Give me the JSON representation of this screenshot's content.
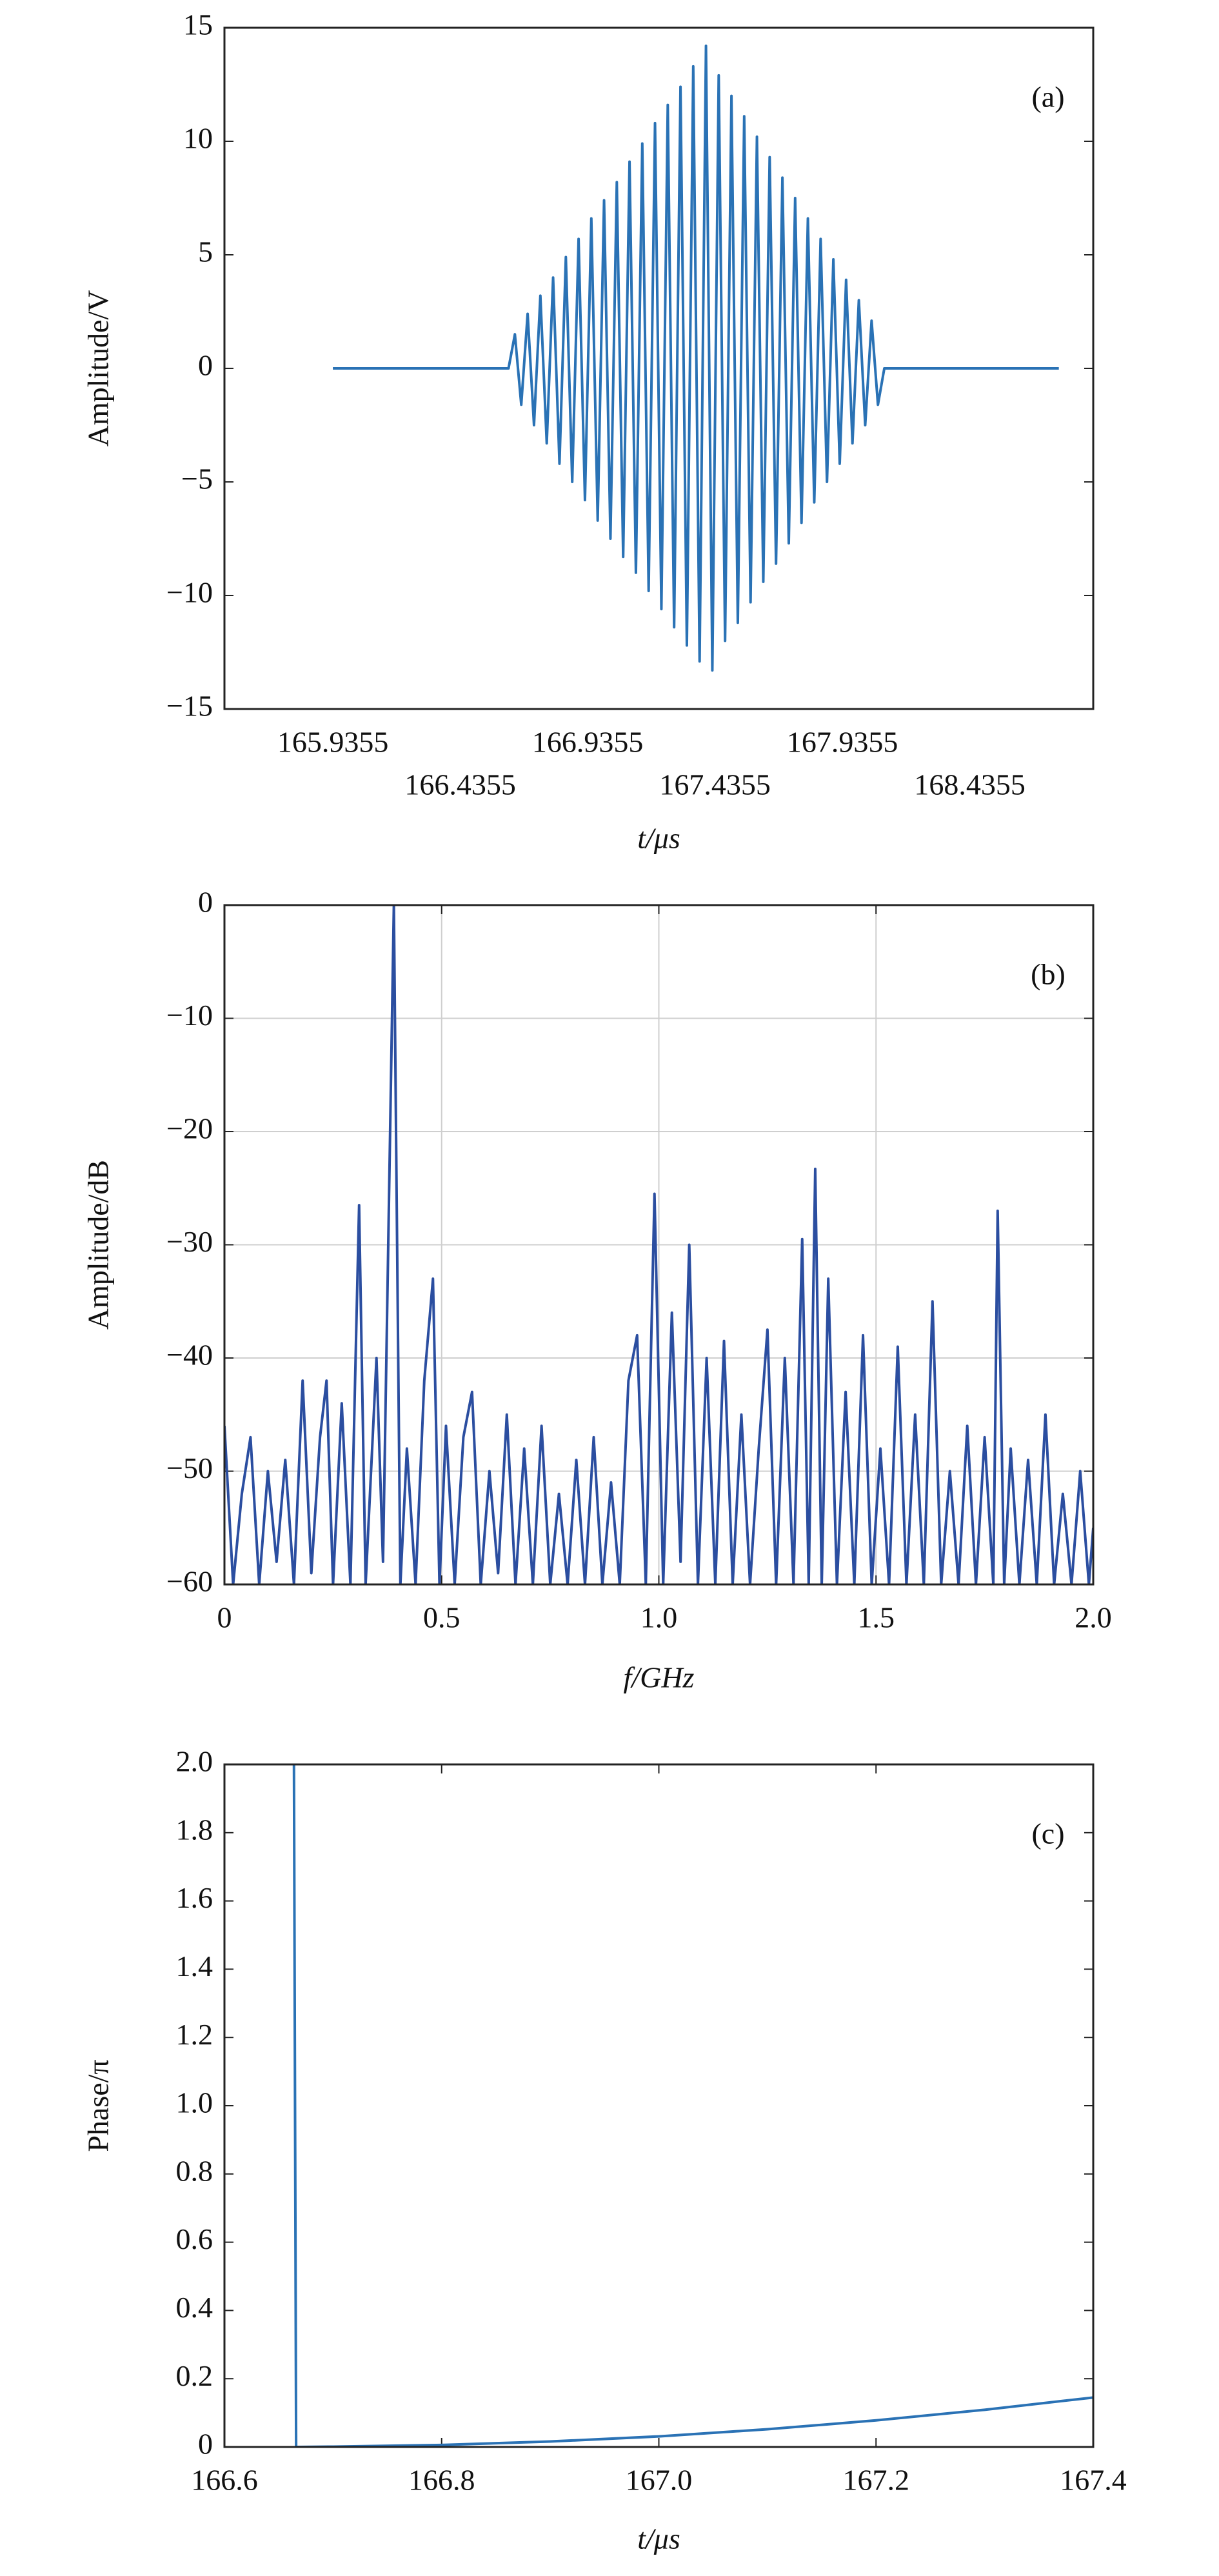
{
  "chart_data": [
    {
      "type": "line",
      "annotation": "(a)",
      "xlabel": "t/μs",
      "ylabel": "Amplitude/V",
      "color": "#2a72b5",
      "grid": false,
      "xlim": [
        165.51,
        168.92
      ],
      "xticks": [
        165.9355,
        166.4355,
        166.9355,
        167.4355,
        167.9355,
        168.4355
      ],
      "ylim": [
        -15,
        15
      ],
      "yticks": [
        {
          "value": -15,
          "label": "−15"
        },
        {
          "value": -10,
          "label": "−10"
        },
        {
          "value": -5,
          "label": "−5"
        },
        0,
        5,
        10,
        15
      ],
      "x": [
        165.9355,
        166.625,
        166.65,
        166.675,
        166.7,
        166.725,
        166.75,
        166.775,
        166.8,
        166.825,
        166.85,
        166.875,
        166.9,
        166.925,
        166.95,
        166.975,
        167.0,
        167.025,
        167.05,
        167.075,
        167.1,
        167.125,
        167.15,
        167.175,
        167.2,
        167.225,
        167.25,
        167.275,
        167.3,
        167.325,
        167.35,
        167.375,
        167.4,
        167.425,
        167.45,
        167.475,
        167.5,
        167.525,
        167.55,
        167.575,
        167.6,
        167.625,
        167.65,
        167.675,
        167.7,
        167.725,
        167.75,
        167.775,
        167.8,
        167.825,
        167.85,
        167.875,
        167.9,
        167.925,
        167.95,
        167.975,
        168.0,
        168.025,
        168.05,
        168.075,
        168.1,
        168.785
      ],
      "values": [
        0,
        0,
        1.5,
        -1.6,
        2.4,
        -2.5,
        3.2,
        -3.3,
        4.0,
        -4.2,
        4.9,
        -5.0,
        5.7,
        -5.8,
        6.6,
        -6.7,
        7.4,
        -7.5,
        8.2,
        -8.3,
        9.1,
        -9.0,
        9.9,
        -9.8,
        10.8,
        -10.6,
        11.6,
        -11.4,
        12.4,
        -12.2,
        13.3,
        -12.9,
        14.2,
        -13.3,
        12.9,
        -12.0,
        12.0,
        -11.2,
        11.1,
        -10.3,
        10.2,
        -9.4,
        9.3,
        -8.6,
        8.4,
        -7.7,
        7.5,
        -6.8,
        6.6,
        -5.9,
        5.7,
        -5.0,
        4.8,
        -4.2,
        3.9,
        -3.3,
        3.0,
        -2.5,
        2.1,
        -1.6,
        0,
        0
      ]
    },
    {
      "type": "line",
      "annotation": "(b)",
      "xlabel": "f/GHz",
      "ylabel": "Amplitude/dB",
      "color": "#2b4ea0",
      "grid": true,
      "xlim": [
        0,
        2
      ],
      "xticks": [
        0,
        0.5,
        {
          "value": 1,
          "label": "1.0"
        },
        1.5,
        {
          "value": 2,
          "label": "2.0"
        }
      ],
      "ylim": [
        -60,
        0
      ],
      "yticks": [
        {
          "value": -60,
          "label": "−60"
        },
        {
          "value": -50,
          "label": "−50"
        },
        {
          "value": -40,
          "label": "−40"
        },
        {
          "value": -30,
          "label": "−30"
        },
        {
          "value": -20,
          "label": "−20"
        },
        {
          "value": -10,
          "label": "−10"
        },
        0
      ],
      "x": [
        0,
        0.02,
        0.04,
        0.06,
        0.08,
        0.1,
        0.12,
        0.14,
        0.16,
        0.18,
        0.2,
        0.22,
        0.235,
        0.25,
        0.27,
        0.29,
        0.31,
        0.325,
        0.35,
        0.365,
        0.39,
        0.405,
        0.42,
        0.44,
        0.46,
        0.48,
        0.495,
        0.51,
        0.53,
        0.55,
        0.57,
        0.59,
        0.61,
        0.63,
        0.65,
        0.67,
        0.69,
        0.71,
        0.73,
        0.75,
        0.77,
        0.79,
        0.81,
        0.83,
        0.85,
        0.87,
        0.89,
        0.91,
        0.93,
        0.95,
        0.97,
        0.99,
        1.01,
        1.03,
        1.05,
        1.07,
        1.09,
        1.11,
        1.13,
        1.15,
        1.17,
        1.19,
        1.21,
        1.23,
        1.25,
        1.27,
        1.29,
        1.31,
        1.33,
        1.345,
        1.36,
        1.375,
        1.39,
        1.41,
        1.43,
        1.45,
        1.47,
        1.49,
        1.51,
        1.53,
        1.55,
        1.57,
        1.59,
        1.61,
        1.63,
        1.65,
        1.67,
        1.69,
        1.71,
        1.73,
        1.75,
        1.77,
        1.78,
        1.795,
        1.81,
        1.83,
        1.85,
        1.87,
        1.89,
        1.91,
        1.93,
        1.95,
        1.97,
        1.99,
        2.0
      ],
      "values": [
        -46,
        -60,
        -52,
        -47,
        -60,
        -50,
        -58,
        -49,
        -60,
        -42,
        -59,
        -47,
        -42,
        -60,
        -44,
        -60,
        -26.5,
        -60,
        -40,
        -58,
        0,
        -60,
        -48,
        -60,
        -42,
        -33,
        -60,
        -46,
        -60,
        -47,
        -43,
        -60,
        -50,
        -59,
        -45,
        -60,
        -48,
        -60,
        -46,
        -60,
        -52,
        -60,
        -49,
        -60,
        -47,
        -60,
        -51,
        -60,
        -42,
        -38,
        -60,
        -25.5,
        -60,
        -36,
        -58,
        -30,
        -60,
        -40,
        -60,
        -38.5,
        -60,
        -45,
        -60,
        -48,
        -37.5,
        -60,
        -40,
        -60,
        -29.5,
        -60,
        -23.3,
        -60,
        -33,
        -60,
        -43,
        -60,
        -38,
        -60,
        -48,
        -60,
        -39,
        -60,
        -45,
        -60,
        -35,
        -60,
        -50,
        -60,
        -46,
        -60,
        -47,
        -60,
        -27,
        -60,
        -48,
        -60,
        -49,
        -60,
        -45,
        -60,
        -52,
        -60,
        -50,
        -60,
        -55
      ]
    },
    {
      "type": "line",
      "annotation": "(c)",
      "xlabel": "t/μs",
      "ylabel": "Phase/π",
      "color": "#2a72b5",
      "grid": false,
      "xlim": [
        166.6,
        167.4
      ],
      "xticks": [
        166.6,
        166.8,
        {
          "value": 167,
          "label": "167.0"
        },
        167.2,
        167.4
      ],
      "ylim": [
        0,
        2
      ],
      "yticks": [
        0,
        0.2,
        0.4,
        0.6,
        0.8,
        {
          "value": 1,
          "label": "1.0"
        },
        1.2,
        1.4,
        1.6,
        1.8,
        {
          "value": 2,
          "label": "2.0"
        }
      ],
      "x": [
        166.664,
        166.666,
        166.7,
        166.8,
        166.9,
        167.0,
        167.1,
        167.2,
        167.3,
        167.4
      ],
      "values": [
        2.0,
        0,
        0.001,
        0.006,
        0.016,
        0.031,
        0.052,
        0.078,
        0.109,
        0.145
      ]
    }
  ]
}
